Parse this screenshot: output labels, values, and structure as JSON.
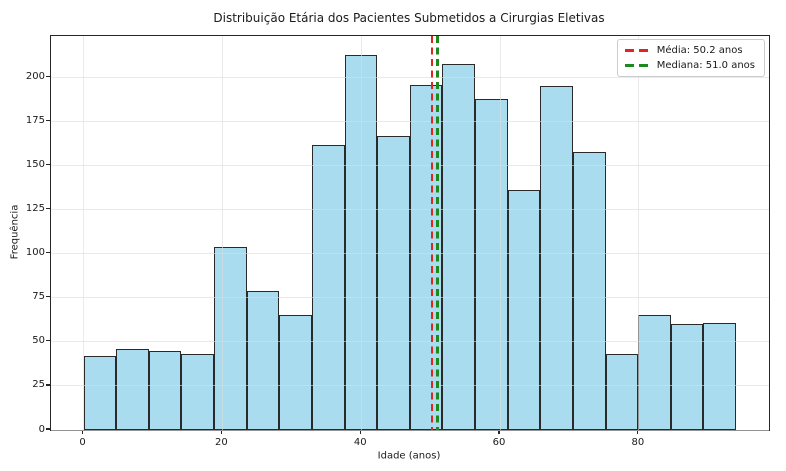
{
  "chart_data": {
    "type": "bar",
    "subtype": "histogram",
    "title": "Distribuição Etária dos Pacientes Submetidos a Cirurgias Eletivas",
    "xlabel": "Idade (anos)",
    "ylabel": "Frequência",
    "bins": {
      "start": 0,
      "width": 4.7,
      "count": 20
    },
    "values": [
      42,
      46,
      45,
      43,
      104,
      79,
      65,
      162,
      213,
      167,
      196,
      208,
      188,
      136,
      195,
      158,
      43,
      65,
      60,
      61
    ],
    "xticks": [
      0,
      20,
      40,
      60,
      80
    ],
    "yticks": [
      0,
      25,
      50,
      75,
      100,
      125,
      150,
      175,
      200
    ],
    "xlim": [
      -4.7,
      98.75
    ],
    "ylim": [
      0,
      223.6
    ],
    "grid": true,
    "legend_position": "top-right",
    "colors": {
      "bar_fill": "#A9DCEE",
      "bar_edge": "#2a2a2a",
      "mean_line": "#e32222",
      "median_line": "#1e8a1e",
      "grid_overlay": "rgba(220,220,220,0.6)",
      "spine": "#262626"
    },
    "vlines": [
      {
        "x": 50.2,
        "color": "#e32222",
        "style": "dashed",
        "label": "Média: 50.2 anos"
      },
      {
        "x": 51.0,
        "color": "#1e8a1e",
        "style": "dashed",
        "label": "Mediana: 51.0 anos"
      }
    ]
  }
}
